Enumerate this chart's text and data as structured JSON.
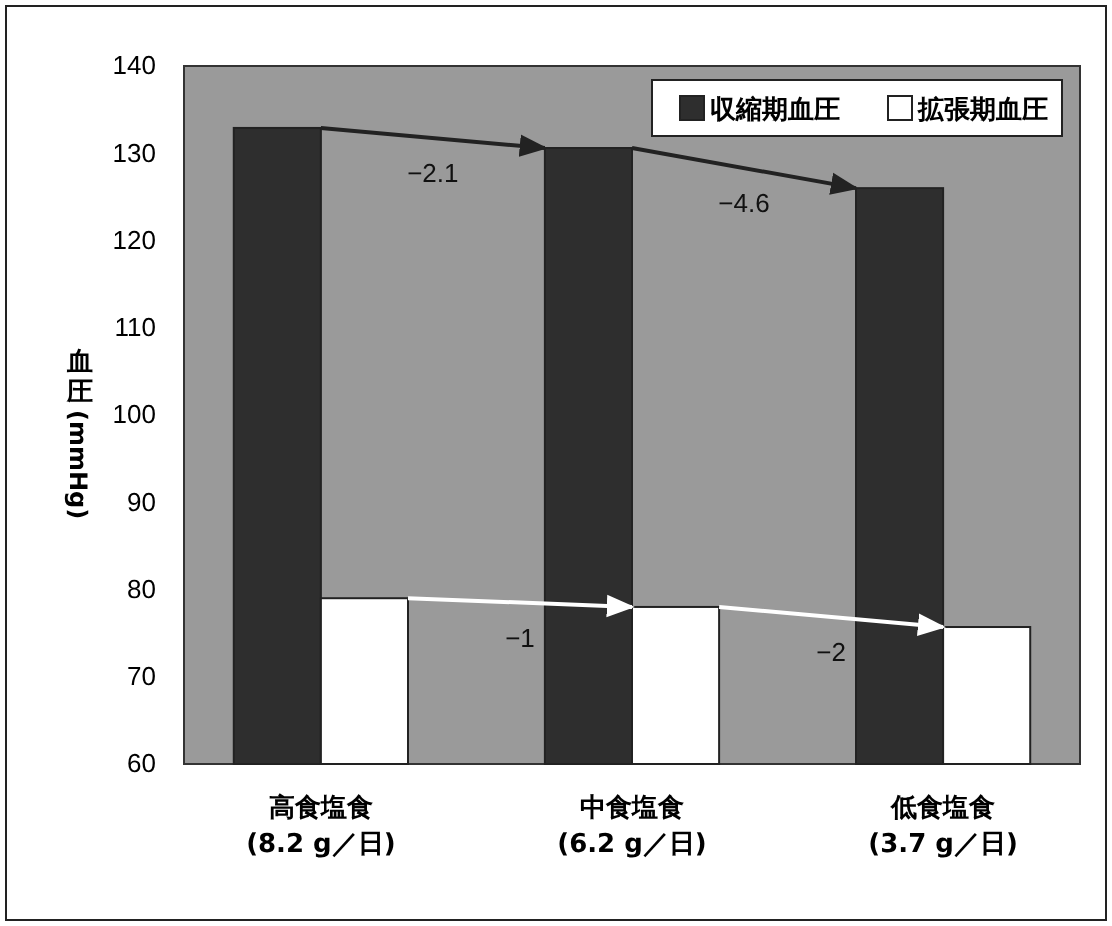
{
  "chart_data": {
    "type": "bar",
    "ylabel": "血圧(mmHg)",
    "categories": [
      "高食塩食\n(8.2 g／日)",
      "中食塩食\n(6.2 g／日)",
      "低食塩食\n(3.7 g／日)"
    ],
    "series": [
      {
        "name": "収縮期血圧",
        "color": "#2e2e2e",
        "values": [
          132.9,
          130.6,
          126.0
        ]
      },
      {
        "name": "拡張期血圧",
        "color": "#ffffff",
        "values": [
          79.0,
          78.0,
          75.7
        ]
      }
    ],
    "ylim": [
      60,
      140
    ],
    "yticks": [
      60,
      70,
      80,
      90,
      100,
      110,
      120,
      130,
      140
    ],
    "grid": false,
    "legend": "top right",
    "annotations": [
      "−2.1",
      "−4.6",
      "−1",
      "−2"
    ]
  }
}
